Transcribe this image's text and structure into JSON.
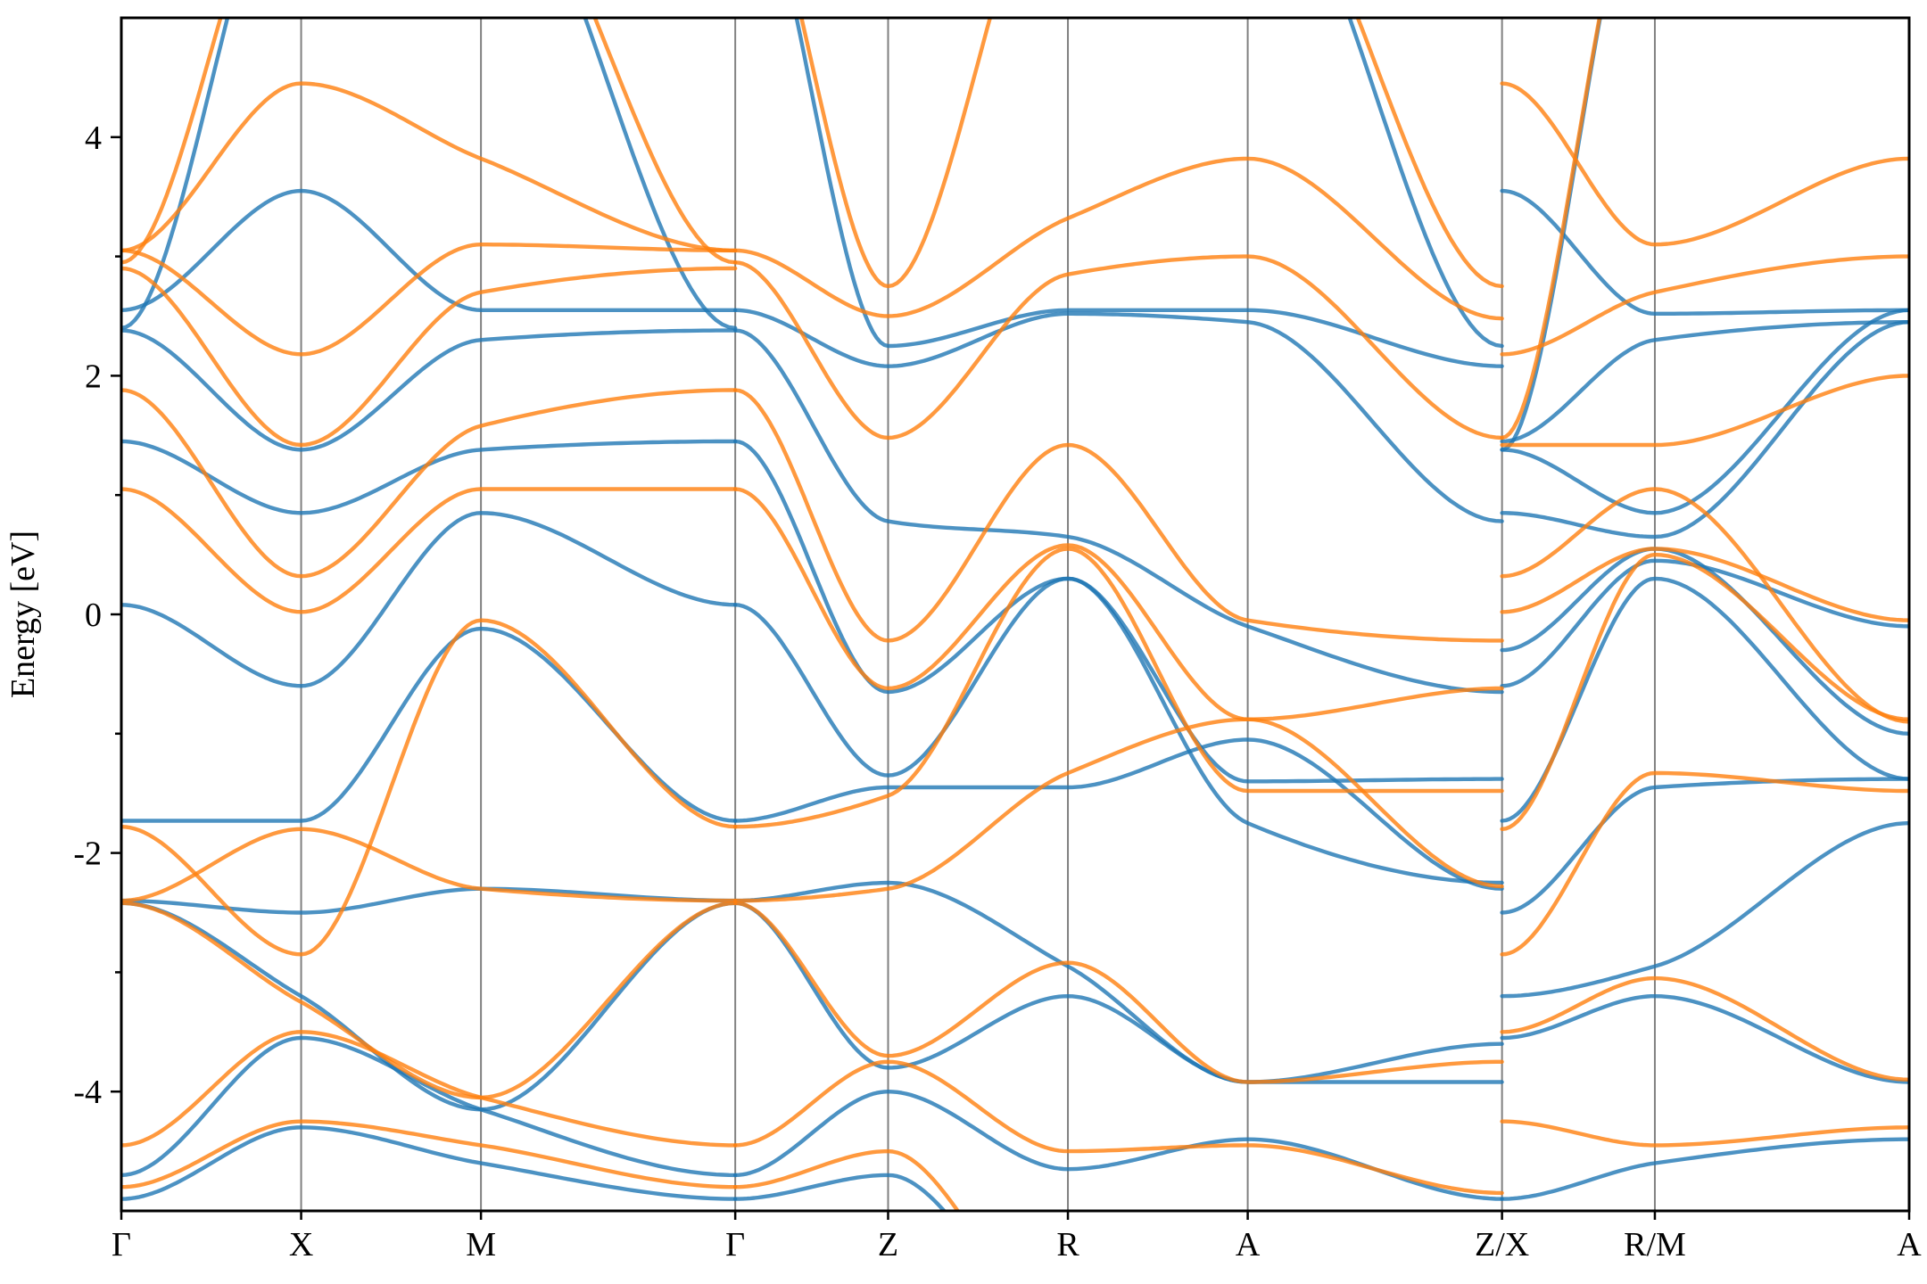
{
  "chart_data": {
    "type": "line",
    "title": "",
    "xlabel": "",
    "ylabel": "Energy [eV]",
    "ylim": [
      -5,
      5
    ],
    "y_ticks": [
      4,
      2,
      0,
      -2,
      -4
    ],
    "y_tick_labels": [
      "4",
      "2",
      "0",
      "-2",
      "-4"
    ],
    "y_minor_ticks": [
      3,
      1,
      -1,
      -3
    ],
    "grid": false,
    "legend": "none",
    "k_path": {
      "labels": [
        "Γ",
        "X",
        "M",
        "Γ",
        "Z",
        "R",
        "A",
        "Z/X",
        "R/M",
        "A"
      ],
      "positions": [
        0,
        0.5,
        1.0,
        1.7071,
        2.1321,
        2.6321,
        3.1321,
        3.8392,
        4.2642,
        4.9713
      ]
    },
    "colors": {
      "series_a": "#1f77b4",
      "series_b": "#ff7f0e"
    },
    "series": [
      {
        "color_key": "series_a",
        "segments": [
          {
            "x0": 0,
            "x1": 1.7071,
            "nodes": [
              0,
              0.5,
              1.0,
              1.7071
            ],
            "bands": [
              [
                -4.9,
                -4.3,
                -4.6,
                -4.9
              ],
              [
                -4.7,
                -3.55,
                -4.15,
                -4.7
              ],
              [
                -2.42,
                -3.2,
                -4.15,
                -2.42
              ],
              [
                -2.4,
                -2.5,
                -2.3,
                -2.4
              ],
              [
                -1.73,
                -1.73,
                -0.12,
                -1.73
              ],
              [
                0.08,
                -0.6,
                0.85,
                0.08
              ],
              [
                1.45,
                0.85,
                1.38,
                1.45
              ],
              [
                2.38,
                1.38,
                2.3,
                2.38
              ],
              [
                2.55,
                3.55,
                2.55,
                2.55
              ],
              [
                2.4,
                6.5,
                6.5,
                2.4
              ]
            ]
          },
          {
            "x0": 1.7071,
            "x1": 3.8392,
            "nodes": [
              1.7071,
              2.1321,
              2.6321,
              3.1321,
              3.8392
            ],
            "bands": [
              [
                -4.9,
                -4.7,
                -6.0,
                -6.0,
                -6.0
              ],
              [
                -4.7,
                -4.0,
                -4.65,
                -4.4,
                -4.9
              ],
              [
                -2.42,
                -3.8,
                -3.2,
                -3.92,
                -3.92
              ],
              [
                -2.4,
                -2.25,
                -2.95,
                -3.92,
                -3.6
              ],
              [
                -1.73,
                -1.45,
                -1.45,
                -1.05,
                -2.3
              ],
              [
                0.08,
                -1.35,
                0.3,
                -1.75,
                -2.25
              ],
              [
                1.45,
                -0.65,
                0.3,
                -1.4,
                -1.38
              ],
              [
                2.38,
                0.78,
                0.65,
                -0.1,
                -0.65
              ],
              [
                2.55,
                2.08,
                2.52,
                2.45,
                0.78
              ],
              [
                6.5,
                2.25,
                2.55,
                2.55,
                2.08
              ],
              [
                6.5,
                6.5,
                6.5,
                6.5,
                2.25
              ]
            ]
          },
          {
            "x0": 3.8392,
            "x1": 4.9713,
            "nodes": [
              3.8392,
              4.2642,
              4.9713
            ],
            "bands": [
              [
                -4.9,
                -4.6,
                -4.4
              ],
              [
                -3.55,
                -3.2,
                -3.92
              ],
              [
                -3.2,
                -2.95,
                -1.75
              ],
              [
                -2.5,
                -1.45,
                -1.38
              ],
              [
                -1.73,
                0.3,
                -1.38
              ],
              [
                -0.6,
                0.45,
                -0.1
              ],
              [
                -0.3,
                0.55,
                -1.0
              ],
              [
                0.85,
                0.65,
                2.45
              ],
              [
                1.38,
                0.85,
                2.55
              ],
              [
                3.55,
                2.52,
                2.55
              ],
              [
                1.45,
                2.3,
                2.45
              ],
              [
                1.38,
                6.5,
                6.5
              ]
            ]
          }
        ]
      },
      {
        "color_key": "series_b",
        "segments": [
          {
            "x0": 0,
            "x1": 1.7071,
            "nodes": [
              0,
              0.5,
              1.0,
              1.7071
            ],
            "bands": [
              [
                -4.8,
                -4.25,
                -4.45,
                -4.8
              ],
              [
                -4.45,
                -3.5,
                -4.05,
                -4.45
              ],
              [
                -2.42,
                -3.25,
                -4.05,
                -2.42
              ],
              [
                -2.4,
                -1.8,
                -2.3,
                -2.4
              ],
              [
                -1.78,
                -2.85,
                -0.05,
                -1.78
              ],
              [
                1.05,
                0.02,
                1.05,
                1.05
              ],
              [
                1.88,
                0.32,
                1.58,
                1.88
              ],
              [
                2.9,
                1.42,
                2.7,
                2.9
              ],
              [
                3.05,
                2.18,
                3.1,
                3.05
              ],
              [
                3.05,
                4.45,
                3.82,
                3.05
              ],
              [
                2.95,
                6.5,
                6.5,
                2.95
              ]
            ]
          },
          {
            "x0": 1.7071,
            "x1": 3.8392,
            "nodes": [
              1.7071,
              2.1321,
              2.6321,
              3.1321,
              3.8392
            ],
            "bands": [
              [
                -4.8,
                -4.5,
                -6.0,
                -6.0,
                -6.0
              ],
              [
                -4.45,
                -3.75,
                -4.5,
                -4.45,
                -4.85
              ],
              [
                -2.42,
                -3.7,
                -2.92,
                -3.92,
                -3.75
              ],
              [
                -2.4,
                -2.3,
                -1.33,
                -0.88,
                -2.28
              ],
              [
                -1.78,
                -1.52,
                0.55,
                -1.48,
                -1.48
              ],
              [
                1.05,
                -0.62,
                0.58,
                -0.88,
                -0.62
              ],
              [
                1.88,
                -0.22,
                1.42,
                -0.05,
                -0.22
              ],
              [
                2.95,
                1.48,
                2.85,
                3.0,
                1.48
              ],
              [
                3.05,
                2.5,
                3.32,
                3.82,
                2.48
              ],
              [
                6.5,
                2.75,
                6.5,
                6.5,
                2.75
              ]
            ]
          },
          {
            "x0": 3.8392,
            "x1": 4.9713,
            "nodes": [
              3.8392,
              4.2642,
              4.9713
            ],
            "bands": [
              [
                -4.25,
                -4.45,
                -4.3
              ],
              [
                -3.5,
                -3.05,
                -3.9
              ],
              [
                -2.85,
                -1.33,
                -1.48
              ],
              [
                -1.8,
                0.5,
                -0.88
              ],
              [
                0.02,
                0.55,
                -0.05
              ],
              [
                0.32,
                1.05,
                -0.9
              ],
              [
                1.42,
                1.42,
                2.0
              ],
              [
                2.18,
                2.7,
                3.0
              ],
              [
                4.45,
                3.1,
                3.82
              ],
              [
                1.48,
                6.5,
                6.5
              ]
            ]
          }
        ]
      }
    ]
  }
}
